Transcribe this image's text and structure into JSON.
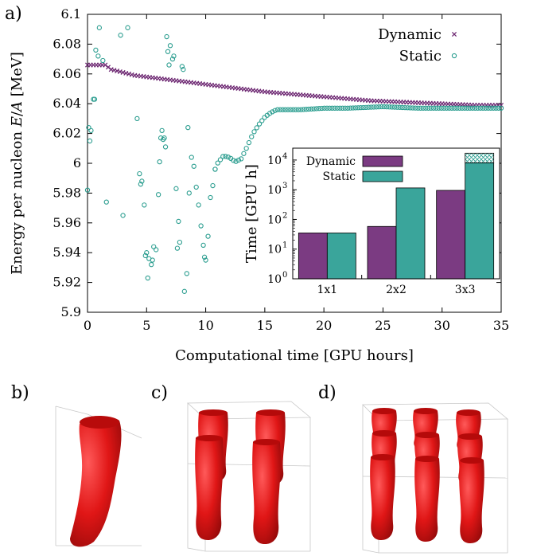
{
  "panels": {
    "a": "a)",
    "b": "b)",
    "c": "c)",
    "d": "d)"
  },
  "colors": {
    "dynamic": "#6b2470",
    "static": "#2a9d8f",
    "bar_dynamic": "#7b3b82",
    "bar_static": "#3aa59b",
    "tube": "#e01616"
  },
  "chart_data": [
    {
      "type": "scatter",
      "xlabel": "Computational time [GPU hours]",
      "ylabel": "Energy per nucleon E/A [MeV]",
      "xlim": [
        0,
        35
      ],
      "ylim": [
        5.9,
        6.1
      ],
      "xticks": [
        "0",
        "5",
        "10",
        "15",
        "20",
        "25",
        "30",
        "35"
      ],
      "yticks": [
        "5.9",
        "5.92",
        "5.94",
        "5.96",
        "5.98",
        "6",
        "6.02",
        "6.04",
        "6.06",
        "6.08",
        "6.1"
      ],
      "grid": false,
      "legend": "top-right",
      "series": [
        {
          "name": "Dynamic",
          "marker": "x",
          "description": "plateau 6.066 until t≈1 h, then slow decay to ≈6.039 at t=35 h",
          "x": [
            0.0,
            0.3,
            0.6,
            0.9,
            1.2,
            1.5,
            2,
            3,
            4,
            5,
            6,
            8,
            10,
            12,
            15,
            18,
            21,
            24,
            27,
            30,
            33,
            35
          ],
          "y": [
            6.066,
            6.066,
            6.066,
            6.066,
            6.066,
            6.066,
            6.063,
            6.061,
            6.059,
            6.058,
            6.057,
            6.055,
            6.053,
            6.051,
            6.048,
            6.046,
            6.044,
            6.042,
            6.041,
            6.04,
            6.039,
            6.039
          ]
        },
        {
          "name": "Static",
          "marker": "o",
          "description": "scattered early points (t<11 h), then converging curve to ≈6.037",
          "x": [
            0.0,
            0.1,
            0.2,
            0.3,
            0.5,
            0.6,
            0.7,
            0.9,
            1.0,
            1.3,
            1.6,
            2.8,
            3.0,
            3.4,
            4.2,
            4.4,
            4.5,
            4.6,
            4.8,
            4.9,
            5.0,
            5.1,
            5.2,
            5.4,
            5.5,
            5.6,
            5.8,
            6.0,
            6.1,
            6.2,
            6.3,
            6.4,
            6.5,
            6.6,
            6.7,
            6.8,
            6.9,
            7.0,
            7.2,
            7.3,
            7.5,
            7.6,
            7.7,
            7.8,
            8.0,
            8.1,
            8.2,
            8.4,
            8.5,
            8.6,
            8.8,
            9.0,
            9.2,
            9.4,
            9.6,
            9.8,
            9.9,
            10.0,
            10.2,
            10.4,
            10.6,
            10.8,
            11.0,
            11.5,
            12.0,
            12.5,
            13.0,
            13.5,
            14.0,
            14.5,
            15.0,
            15.5,
            16.0,
            17.0,
            18.0,
            20.0,
            22.0,
            25.0,
            28.0,
            31.0,
            35.0
          ],
          "y": [
            5.982,
            6.024,
            6.015,
            6.022,
            6.043,
            6.043,
            6.076,
            6.072,
            6.091,
            6.069,
            5.974,
            6.086,
            5.965,
            6.091,
            6.03,
            5.993,
            5.986,
            5.988,
            5.972,
            5.938,
            5.94,
            5.923,
            5.936,
            5.932,
            5.935,
            5.944,
            5.942,
            5.979,
            6.001,
            6.017,
            6.022,
            6.016,
            6.017,
            6.011,
            6.085,
            6.075,
            6.066,
            6.079,
            6.07,
            6.072,
            5.983,
            5.943,
            5.961,
            5.947,
            6.065,
            6.063,
            5.914,
            5.926,
            6.024,
            5.98,
            6.004,
            5.998,
            5.984,
            5.972,
            5.958,
            5.945,
            5.937,
            5.935,
            5.951,
            5.977,
            5.985,
            5.996,
            6.0,
            6.005,
            6.004,
            6.001,
            6.003,
            6.011,
            6.02,
            6.026,
            6.031,
            6.034,
            6.036,
            6.036,
            6.036,
            6.037,
            6.037,
            6.038,
            6.037,
            6.037,
            6.037
          ]
        }
      ]
    },
    {
      "type": "bar",
      "scale": "log",
      "ylabel": "Time [GPU h]",
      "categories": [
        "1x1",
        "2x2",
        "3x3"
      ],
      "yticks": [
        "10",
        "10",
        "10",
        "10",
        "10"
      ],
      "ytick_exponents": [
        "0",
        "1",
        "2",
        "3",
        "4"
      ],
      "legend": "top-left",
      "series": [
        {
          "name": "Dynamic",
          "values": [
            35,
            58,
            950
          ]
        },
        {
          "name": "Static",
          "values": [
            35,
            1150,
            8000
          ]
        }
      ],
      "hatched_extension": {
        "category": "3x3",
        "series": "Static",
        "from": 8000,
        "to": 17000
      }
    }
  ]
}
